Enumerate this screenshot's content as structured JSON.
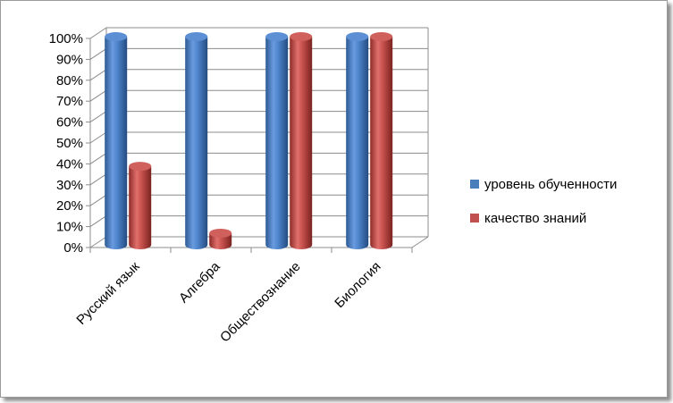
{
  "chart_data": {
    "type": "bar",
    "categories": [
      "Русский язык",
      "Алгебра",
      "Обществознание",
      "Биология"
    ],
    "series": [
      {
        "name": "уровень обученности",
        "values": [
          100,
          100,
          100,
          100
        ],
        "color": "#4a7ebb"
      },
      {
        "name": "качество знаний",
        "values": [
          38,
          6,
          100,
          100
        ],
        "color": "#c0504d"
      }
    ],
    "y_ticks": [
      "0%",
      "10%",
      "20%",
      "30%",
      "40%",
      "50%",
      "60%",
      "70%",
      "80%",
      "90%",
      "100%"
    ],
    "ylim": [
      0,
      100
    ],
    "grid": true,
    "legend_position": "right",
    "title": "",
    "xlabel": "",
    "ylabel": ""
  }
}
